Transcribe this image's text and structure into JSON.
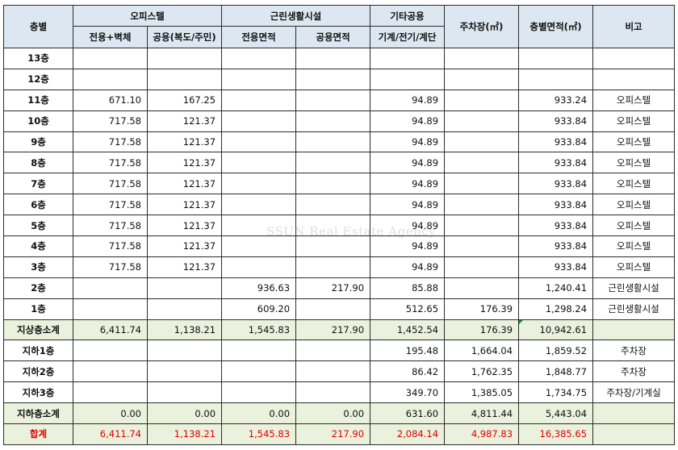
{
  "header": {
    "floor": "층별",
    "office_group": "오피스텔",
    "office_exclusive": "전용+벽체",
    "office_common": "공용(복도/주민)",
    "retail_group": "근린생활시설",
    "retail_exclusive": "전용면적",
    "retail_common": "공용면적",
    "other_group": "기타공용",
    "other_sub": "기계/전기/계단",
    "parking": "주차장(㎡)",
    "floor_area": "층별면적(㎡)",
    "note": "비고"
  },
  "rows": [
    {
      "floor": "13층",
      "office_ex": "",
      "office_co": "",
      "retail_ex": "",
      "retail_co": "",
      "other": "",
      "parking": "",
      "area": "",
      "note": ""
    },
    {
      "floor": "12층",
      "office_ex": "",
      "office_co": "",
      "retail_ex": "",
      "retail_co": "",
      "other": "",
      "parking": "",
      "area": "",
      "note": ""
    },
    {
      "floor": "11층",
      "office_ex": "671.10",
      "office_co": "167.25",
      "retail_ex": "",
      "retail_co": "",
      "other": "94.89",
      "parking": "",
      "area": "933.24",
      "note": "오피스텔"
    },
    {
      "floor": "10층",
      "office_ex": "717.58",
      "office_co": "121.37",
      "retail_ex": "",
      "retail_co": "",
      "other": "94.89",
      "parking": "",
      "area": "933.84",
      "note": "오피스텔"
    },
    {
      "floor": "9층",
      "office_ex": "717.58",
      "office_co": "121.37",
      "retail_ex": "",
      "retail_co": "",
      "other": "94.89",
      "parking": "",
      "area": "933.84",
      "note": "오피스텔"
    },
    {
      "floor": "8층",
      "office_ex": "717.58",
      "office_co": "121.37",
      "retail_ex": "",
      "retail_co": "",
      "other": "94.89",
      "parking": "",
      "area": "933.84",
      "note": "오피스텔"
    },
    {
      "floor": "7층",
      "office_ex": "717.58",
      "office_co": "121.37",
      "retail_ex": "",
      "retail_co": "",
      "other": "94.89",
      "parking": "",
      "area": "933.84",
      "note": "오피스텔"
    },
    {
      "floor": "6층",
      "office_ex": "717.58",
      "office_co": "121.37",
      "retail_ex": "",
      "retail_co": "",
      "other": "94.89",
      "parking": "",
      "area": "933.84",
      "note": "오피스텔"
    },
    {
      "floor": "5층",
      "office_ex": "717.58",
      "office_co": "121.37",
      "retail_ex": "",
      "retail_co": "",
      "other": "94.89",
      "parking": "",
      "area": "933.84",
      "note": "오피스텔"
    },
    {
      "floor": "4층",
      "office_ex": "717.58",
      "office_co": "121.37",
      "retail_ex": "",
      "retail_co": "",
      "other": "94.89",
      "parking": "",
      "area": "933.84",
      "note": "오피스텔"
    },
    {
      "floor": "3층",
      "office_ex": "717.58",
      "office_co": "121.37",
      "retail_ex": "",
      "retail_co": "",
      "other": "94.89",
      "parking": "",
      "area": "933.84",
      "note": "오피스텔"
    },
    {
      "floor": "2층",
      "office_ex": "",
      "office_co": "",
      "retail_ex": "936.63",
      "retail_co": "217.90",
      "other": "85.88",
      "parking": "",
      "area": "1,240.41",
      "note": "근린생활시설"
    },
    {
      "floor": "1층",
      "office_ex": "",
      "office_co": "",
      "retail_ex": "609.20",
      "retail_co": "",
      "other": "512.65",
      "parking": "176.39",
      "area": "1,298.24",
      "note": "근린생활시설"
    },
    {
      "floor": "지상층소계",
      "office_ex": "6,411.74",
      "office_co": "1,138.21",
      "retail_ex": "1,545.83",
      "retail_co": "217.90",
      "other": "1,452.54",
      "parking": "176.39",
      "area": "10,942.61",
      "note": ""
    },
    {
      "floor": "지하1층",
      "office_ex": "",
      "office_co": "",
      "retail_ex": "",
      "retail_co": "",
      "other": "195.48",
      "parking": "1,664.04",
      "area": "1,859.52",
      "note": "주차장"
    },
    {
      "floor": "지하2층",
      "office_ex": "",
      "office_co": "",
      "retail_ex": "",
      "retail_co": "",
      "other": "86.42",
      "parking": "1,762.35",
      "area": "1,848.77",
      "note": "주차장"
    },
    {
      "floor": "지하3층",
      "office_ex": "",
      "office_co": "",
      "retail_ex": "",
      "retail_co": "",
      "other": "349.70",
      "parking": "1,385.05",
      "area": "1,734.75",
      "note": "주차장/기계실"
    },
    {
      "floor": "지하층소계",
      "office_ex": "0.00",
      "office_co": "0.00",
      "retail_ex": "0.00",
      "retail_co": "0.00",
      "other": "631.60",
      "parking": "4,811.44",
      "area": "5,443.04",
      "note": ""
    },
    {
      "floor": "합계",
      "office_ex": "6,411.74",
      "office_co": "1,138.21",
      "retail_ex": "1,545.83",
      "retail_co": "217.90",
      "other": "2,084.14",
      "parking": "4,987.83",
      "area": "16,385.65",
      "note": ""
    }
  ],
  "watermark": "SSUN Real Estate Agency",
  "colors": {
    "header_bg": "#dde7f1",
    "subtotal_bg": "#eaf1dc",
    "total_text": "#e10000"
  }
}
